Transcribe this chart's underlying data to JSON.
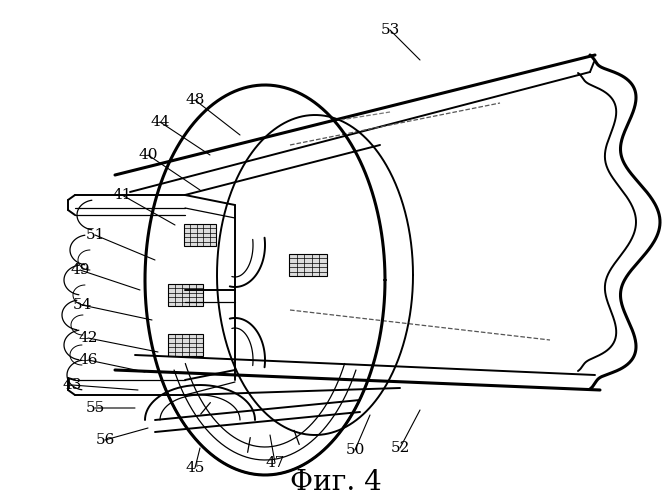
{
  "title": "Фиг. 4",
  "title_fontsize": 20,
  "background_color": "#ffffff",
  "line_color": "#000000",
  "label_fontsize": 11,
  "figsize": [
    6.71,
    5.0
  ],
  "dpi": 100
}
